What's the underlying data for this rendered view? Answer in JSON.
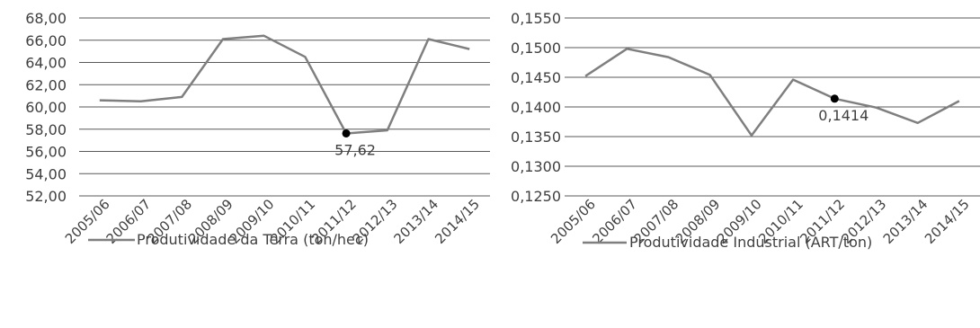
{
  "chart_data": [
    {
      "type": "line",
      "categories": [
        "2005/06",
        "2006/07",
        "2007/08",
        "2008/09",
        "2009/10",
        "2010/11",
        "2011/12",
        "2012/13",
        "2013/14",
        "2014/15"
      ],
      "series": [
        {
          "name": "Produtividade da Terra (ton/hec)",
          "values": [
            60.6,
            60.5,
            60.9,
            66.1,
            66.4,
            64.5,
            57.62,
            57.9,
            66.1,
            65.2
          ]
        }
      ],
      "yticks": [
        "52,00",
        "54,00",
        "56,00",
        "58,00",
        "60,00",
        "62,00",
        "64,00",
        "66,00",
        "68,00"
      ],
      "ylim": [
        52,
        68
      ],
      "grid": true,
      "legend": "bottom",
      "highlight": {
        "index": 6,
        "label": "57,62"
      },
      "line_color": "#7f7f7f",
      "grid_color": "#595959",
      "title": "",
      "xlabel": "",
      "ylabel": ""
    },
    {
      "type": "line",
      "categories": [
        "2005/06",
        "2006/07",
        "2007/08",
        "2008/09",
        "2009/10",
        "2010/11",
        "2011/12",
        "2012/13",
        "2013/14",
        "2014/15"
      ],
      "series": [
        {
          "name": "Produtividade Industrial (ART/ton)",
          "values": [
            0.1452,
            0.1498,
            0.1484,
            0.1454,
            0.1352,
            0.1446,
            0.1414,
            0.1399,
            0.1373,
            0.141
          ]
        }
      ],
      "yticks": [
        "0,1250",
        "0,1300",
        "0,1350",
        "0,1400",
        "0,1450",
        "0,1500",
        "0,1550"
      ],
      "ylim": [
        0.125,
        0.155
      ],
      "grid": true,
      "legend": "bottom",
      "highlight": {
        "index": 6,
        "label": "0,1414"
      },
      "line_color": "#7f7f7f",
      "grid_color": "#595959",
      "title": "",
      "xlabel": "",
      "ylabel": ""
    }
  ]
}
